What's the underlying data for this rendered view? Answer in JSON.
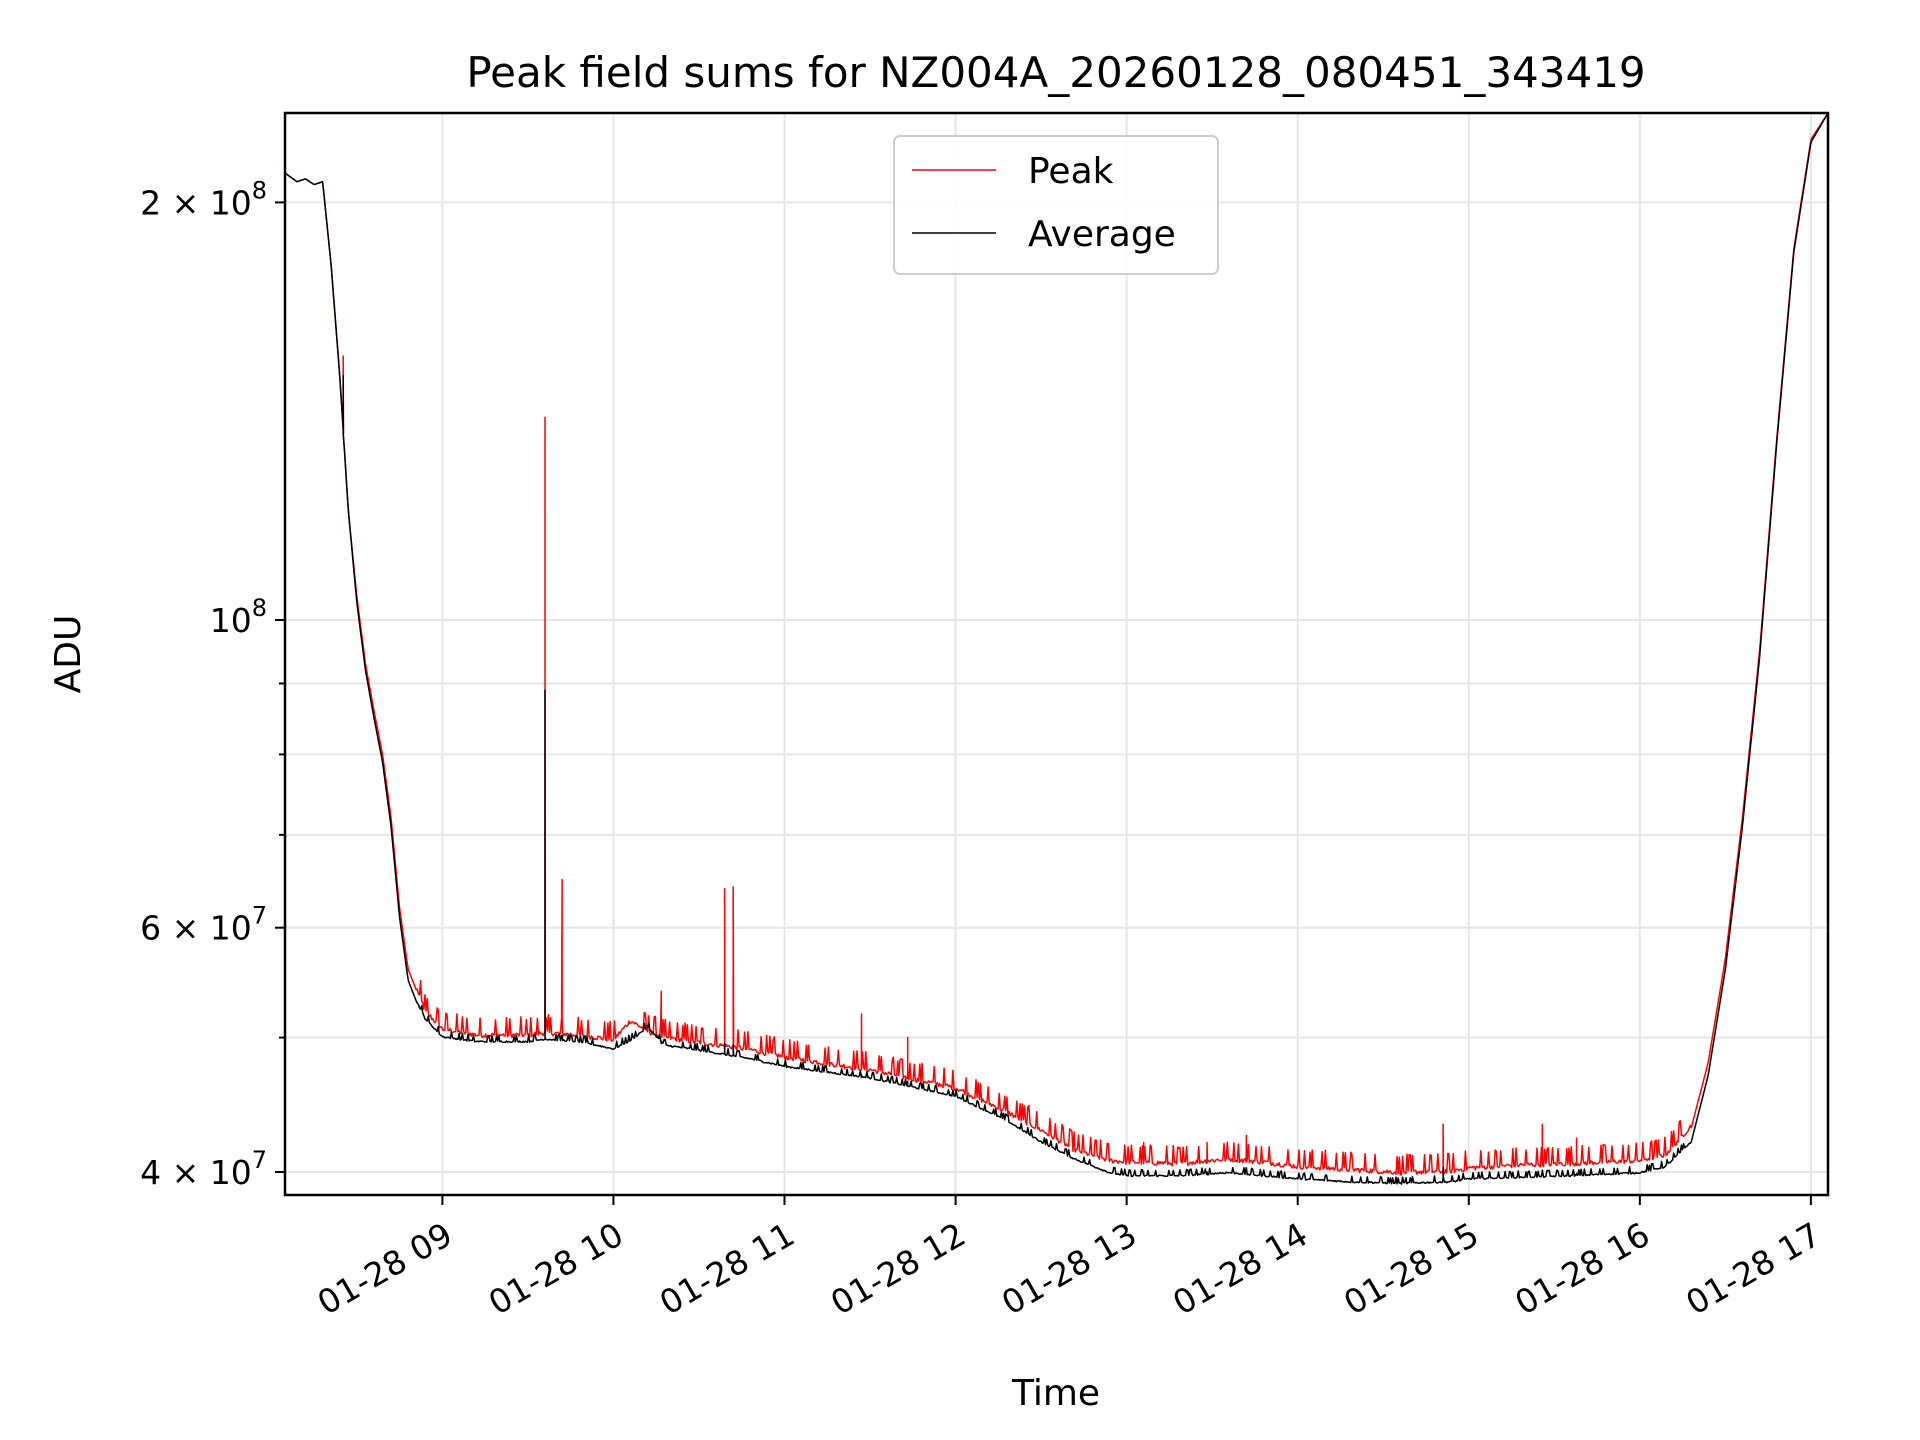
{
  "chart_data": {
    "type": "line",
    "title": "Peak field sums for NZ004A_20260128_080451_343419",
    "xlabel": "Time",
    "ylabel": "ADU",
    "yscale": "log",
    "ylim": [
      38500000,
      232000000
    ],
    "xlim_hours": [
      8.08,
      17.1
    ],
    "grid": true,
    "legend_position": "top-center",
    "x_ticks": [
      {
        "hour": 9,
        "label": "01-28 09"
      },
      {
        "hour": 10,
        "label": "01-28 10"
      },
      {
        "hour": 11,
        "label": "01-28 11"
      },
      {
        "hour": 12,
        "label": "01-28 12"
      },
      {
        "hour": 13,
        "label": "01-28 13"
      },
      {
        "hour": 14,
        "label": "01-28 14"
      },
      {
        "hour": 15,
        "label": "01-28 15"
      },
      {
        "hour": 16,
        "label": "01-28 16"
      },
      {
        "hour": 17,
        "label": "01-28 17"
      }
    ],
    "y_major_ticks": [
      {
        "value": 40000000,
        "mant": "4 × 10",
        "exp": "7"
      },
      {
        "value": 60000000,
        "mant": "6 × 10",
        "exp": "7"
      },
      {
        "value": 100000000,
        "mant": "10",
        "exp": "8"
      },
      {
        "value": 200000000,
        "mant": "2 × 10",
        "exp": "8"
      }
    ],
    "y_minor_ticks": [
      50000000,
      70000000,
      80000000,
      90000000
    ],
    "series": [
      {
        "name": "Peak",
        "color": "#ff0000",
        "x": [
          8.08,
          8.15,
          8.2,
          8.25,
          8.3,
          8.35,
          8.4,
          8.45,
          8.5,
          8.55,
          8.6,
          8.65,
          8.7,
          8.75,
          8.8,
          8.85,
          8.9,
          9.0,
          9.2,
          9.5,
          9.6,
          9.8,
          10.0,
          10.1,
          10.2,
          10.3,
          10.5,
          10.8,
          11.0,
          11.5,
          12.0,
          12.3,
          12.5,
          12.7,
          12.9,
          13.0,
          13.3,
          13.6,
          13.8,
          14.0,
          14.3,
          14.6,
          14.9,
          15.0,
          15.3,
          15.6,
          16.0,
          16.15,
          16.3,
          16.4,
          16.5,
          16.6,
          16.7,
          16.8,
          16.9,
          17.0,
          17.1
        ],
        "values": [
          210000000,
          207000000,
          208000000,
          206000000,
          207000000,
          180000000,
          150000000,
          120000000,
          104000000,
          93000000,
          86000000,
          80000000,
          72000000,
          62000000,
          56000000,
          54000000,
          52000000,
          50500000,
          50000000,
          50000000,
          50200000,
          50000000,
          49600000,
          51200000,
          50300000,
          49800000,
          49400000,
          48800000,
          48200000,
          47200000,
          45800000,
          44000000,
          42700000,
          41300000,
          40600000,
          40500000,
          40400000,
          40700000,
          40500000,
          40200000,
          40000000,
          39800000,
          39900000,
          40100000,
          40300000,
          40400000,
          40600000,
          41000000,
          43000000,
          48000000,
          57000000,
          72000000,
          95000000,
          135000000,
          185000000,
          222000000,
          232000000
        ]
      },
      {
        "name": "Average",
        "color": "#000000",
        "x": [
          8.08,
          8.15,
          8.2,
          8.25,
          8.3,
          8.35,
          8.4,
          8.45,
          8.5,
          8.55,
          8.6,
          8.65,
          8.7,
          8.75,
          8.8,
          8.85,
          8.9,
          9.0,
          9.2,
          9.5,
          9.6,
          9.8,
          10.0,
          10.1,
          10.2,
          10.3,
          10.5,
          10.8,
          11.0,
          11.5,
          12.0,
          12.3,
          12.5,
          12.7,
          12.9,
          13.0,
          13.3,
          13.6,
          13.8,
          14.0,
          14.3,
          14.6,
          14.9,
          15.0,
          15.3,
          15.6,
          16.0,
          16.15,
          16.3,
          16.4,
          16.5,
          16.6,
          16.7,
          16.8,
          16.9,
          17.0,
          17.1
        ],
        "values": [
          210000000,
          207000000,
          208000000,
          206000000,
          207000000,
          180000000,
          150000000,
          120000000,
          103000000,
          92000000,
          85000000,
          79000000,
          71000000,
          61000000,
          55000000,
          53000000,
          51500000,
          50000000,
          49600000,
          49600000,
          49800000,
          49600000,
          49000000,
          49700000,
          50800000,
          49300000,
          48900000,
          48200000,
          47600000,
          46700000,
          45300000,
          43500000,
          42000000,
          40800000,
          39900000,
          39700000,
          39700000,
          39900000,
          39700000,
          39500000,
          39300000,
          39200000,
          39300000,
          39500000,
          39600000,
          39700000,
          39900000,
          40300000,
          42000000,
          47000000,
          56000000,
          71000000,
          94000000,
          134000000,
          184000000,
          221000000,
          232000000
        ]
      }
    ],
    "spikes": [
      {
        "x": 8.42,
        "peak": 155000000,
        "average": 150000000
      },
      {
        "x": 9.6,
        "peak": 140000000,
        "average": 89000000
      },
      {
        "x": 9.7,
        "peak": 65000000,
        "average": 50000000
      },
      {
        "x": 10.28,
        "peak": 54000000,
        "average": 49500000
      },
      {
        "x": 10.65,
        "peak": 64000000,
        "average": 49500000
      },
      {
        "x": 10.7,
        "peak": 64200000,
        "average": 49400000
      },
      {
        "x": 11.45,
        "peak": 52000000,
        "average": 47000000
      },
      {
        "x": 11.72,
        "peak": 50000000,
        "average": 46500000
      },
      {
        "x": 13.1,
        "peak": 42000000,
        "average": 40000000
      },
      {
        "x": 13.47,
        "peak": 42000000,
        "average": 40000000
      },
      {
        "x": 13.7,
        "peak": 42500000,
        "average": 40200000
      },
      {
        "x": 14.85,
        "peak": 43300000,
        "average": 40300000
      },
      {
        "x": 15.43,
        "peak": 43300000,
        "average": 39900000
      },
      {
        "x": 15.63,
        "peak": 42300000,
        "average": 39900000
      }
    ]
  }
}
